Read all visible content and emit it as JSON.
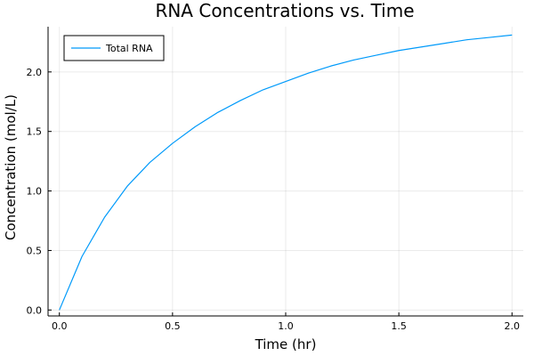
{
  "chart_data": {
    "type": "line",
    "title": "RNA Concentrations vs. Time",
    "xlabel": "Time (hr)",
    "ylabel": "Concentration (mol/L)",
    "xlim": [
      -0.05,
      2.05
    ],
    "ylim": [
      -0.05,
      2.38
    ],
    "xticks": [
      0.0,
      0.5,
      1.0,
      1.5,
      2.0
    ],
    "xtick_labels": [
      "0.0",
      "0.5",
      "1.0",
      "1.5",
      "2.0"
    ],
    "yticks": [
      0.0,
      0.5,
      1.0,
      1.5,
      2.0
    ],
    "ytick_labels": [
      "0.0",
      "0.5",
      "1.0",
      "1.5",
      "2.0"
    ],
    "grid": true,
    "legend_position": "top-left",
    "series": [
      {
        "name": "Total RNA",
        "color": "#009AFA",
        "x": [
          0.0,
          0.1,
          0.2,
          0.3,
          0.4,
          0.5,
          0.6,
          0.7,
          0.8,
          0.9,
          1.0,
          1.1,
          1.2,
          1.3,
          1.4,
          1.5,
          1.6,
          1.7,
          1.8,
          1.9,
          2.0
        ],
        "y": [
          0.0,
          0.45,
          0.78,
          1.04,
          1.24,
          1.4,
          1.54,
          1.66,
          1.76,
          1.85,
          1.92,
          1.99,
          2.05,
          2.1,
          2.14,
          2.18,
          2.21,
          2.24,
          2.27,
          2.29,
          2.31
        ]
      }
    ]
  }
}
